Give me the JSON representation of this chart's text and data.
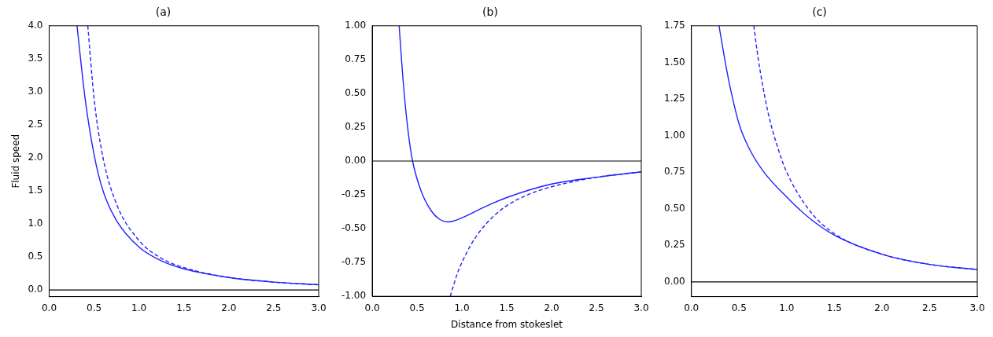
{
  "chart_data": [
    {
      "type": "line",
      "title": "(a)",
      "ylabel": "Fluid speed",
      "xlim": [
        0,
        3
      ],
      "ylim": [
        -0.1,
        4
      ],
      "marker": "none",
      "grid": false,
      "xticks": [
        {
          "value": 0,
          "label": "0.0"
        },
        {
          "value": 0.5,
          "label": "0.5"
        },
        {
          "value": 1,
          "label": "1.0"
        },
        {
          "value": 1.5,
          "label": "1.5"
        },
        {
          "value": 2,
          "label": "2.0"
        },
        {
          "value": 2.5,
          "label": "2.5"
        },
        {
          "value": 3,
          "label": "3.0"
        }
      ],
      "yticks": [
        {
          "value": 0,
          "label": "0.0"
        },
        {
          "value": 0.5,
          "label": "0.5"
        },
        {
          "value": 1,
          "label": "1.0"
        },
        {
          "value": 1.5,
          "label": "1.5"
        },
        {
          "value": 2,
          "label": "2.0"
        },
        {
          "value": 2.5,
          "label": "2.5"
        },
        {
          "value": 3,
          "label": "3.0"
        },
        {
          "value": 3.5,
          "label": "3.5"
        },
        {
          "value": 4,
          "label": "4.0"
        }
      ],
      "ref_lines": [
        {
          "axis": "y",
          "value": 0,
          "color": "#000000"
        }
      ],
      "series": [
        {
          "color": "#2020ff",
          "line_style": "solid",
          "x": [
            0.31,
            0.4,
            0.5,
            0.6,
            0.75,
            1.0,
            1.25,
            1.5,
            2.0,
            2.5,
            3.0
          ],
          "values": [
            4.0,
            2.9,
            2.05,
            1.5,
            1.05,
            0.65,
            0.44,
            0.32,
            0.19,
            0.12,
            0.08
          ]
        },
        {
          "color": "#2020ff",
          "line_style": "dashed",
          "x": [
            0.43,
            0.5,
            0.6,
            0.75,
            1.0,
            1.25,
            1.5,
            2.0,
            2.5,
            3.0
          ],
          "values": [
            4.0,
            2.9,
            2.0,
            1.3,
            0.75,
            0.48,
            0.34,
            0.19,
            0.12,
            0.08
          ]
        }
      ]
    },
    {
      "type": "line",
      "title": "(b)",
      "xlabel": "Distance from stokeslet",
      "xlim": [
        0,
        3
      ],
      "ylim": [
        -1,
        1
      ],
      "marker": "none",
      "grid": false,
      "xticks": [
        {
          "value": 0,
          "label": "0.0"
        },
        {
          "value": 0.5,
          "label": "0.5"
        },
        {
          "value": 1,
          "label": "1.0"
        },
        {
          "value": 1.5,
          "label": "1.5"
        },
        {
          "value": 2,
          "label": "2.0"
        },
        {
          "value": 2.5,
          "label": "2.5"
        },
        {
          "value": 3,
          "label": "3.0"
        }
      ],
      "yticks": [
        {
          "value": -1,
          "label": "-1.00"
        },
        {
          "value": -0.75,
          "label": "-0.75"
        },
        {
          "value": -0.5,
          "label": "-0.50"
        },
        {
          "value": -0.25,
          "label": "-0.25"
        },
        {
          "value": 0,
          "label": "0.00"
        },
        {
          "value": 0.25,
          "label": "0.25"
        },
        {
          "value": 0.5,
          "label": "0.50"
        },
        {
          "value": 0.75,
          "label": "0.75"
        },
        {
          "value": 1,
          "label": "1.00"
        }
      ],
      "ref_lines": [
        {
          "axis": "y",
          "value": 0,
          "color": "#000000"
        }
      ],
      "series": [
        {
          "color": "#2020ff",
          "line_style": "solid",
          "x": [
            0.3,
            0.35,
            0.4,
            0.45,
            0.55,
            0.65,
            0.75,
            0.85,
            1.0,
            1.25,
            1.5,
            2.0,
            2.5,
            3.0
          ],
          "values": [
            1.0,
            0.55,
            0.22,
            0.0,
            -0.23,
            -0.36,
            -0.43,
            -0.45,
            -0.42,
            -0.34,
            -0.27,
            -0.17,
            -0.12,
            -0.08
          ]
        },
        {
          "color": "#2020ff",
          "line_style": "dashed",
          "x": [
            0.87,
            0.95,
            1.0,
            1.1,
            1.2,
            1.35,
            1.5,
            1.75,
            2.0,
            2.5,
            3.0
          ],
          "values": [
            -1.0,
            -0.83,
            -0.75,
            -0.62,
            -0.52,
            -0.41,
            -0.33,
            -0.245,
            -0.19,
            -0.12,
            -0.08
          ]
        }
      ]
    },
    {
      "type": "line",
      "title": "(c)",
      "xlim": [
        0,
        3
      ],
      "ylim": [
        -0.1,
        1.75
      ],
      "marker": "none",
      "grid": false,
      "xticks": [
        {
          "value": 0,
          "label": "0.0"
        },
        {
          "value": 0.5,
          "label": "0.5"
        },
        {
          "value": 1,
          "label": "1.0"
        },
        {
          "value": 1.5,
          "label": "1.5"
        },
        {
          "value": 2,
          "label": "2.0"
        },
        {
          "value": 2.5,
          "label": "2.5"
        },
        {
          "value": 3,
          "label": "3.0"
        }
      ],
      "yticks": [
        {
          "value": 0,
          "label": "0.00"
        },
        {
          "value": 0.25,
          "label": "0.25"
        },
        {
          "value": 0.5,
          "label": "0.50"
        },
        {
          "value": 0.75,
          "label": "0.75"
        },
        {
          "value": 1,
          "label": "1.00"
        },
        {
          "value": 1.25,
          "label": "1.25"
        },
        {
          "value": 1.5,
          "label": "1.50"
        },
        {
          "value": 1.75,
          "label": "1.75"
        }
      ],
      "ref_lines": [
        {
          "axis": "y",
          "value": 0,
          "color": "#000000"
        }
      ],
      "series": [
        {
          "color": "#2020ff",
          "line_style": "solid",
          "x": [
            0.29,
            0.35,
            0.4,
            0.5,
            0.6,
            0.75,
            1.0,
            1.25,
            1.5,
            2.0,
            2.5,
            3.0
          ],
          "values": [
            1.75,
            1.52,
            1.35,
            1.08,
            0.92,
            0.76,
            0.58,
            0.43,
            0.32,
            0.19,
            0.12,
            0.085
          ]
        },
        {
          "color": "#2020ff",
          "line_style": "dashed",
          "x": [
            0.655,
            0.7,
            0.8,
            0.9,
            1.0,
            1.25,
            1.5,
            2.0,
            2.5,
            3.0
          ],
          "values": [
            1.75,
            1.53,
            1.17,
            0.93,
            0.75,
            0.48,
            0.33,
            0.19,
            0.12,
            0.085
          ]
        }
      ]
    }
  ]
}
